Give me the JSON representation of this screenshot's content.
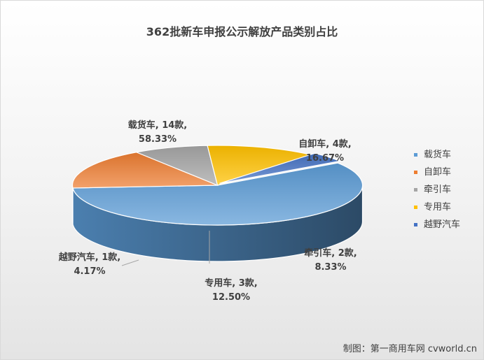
{
  "title": "362批新车申报公示解放产品类别占比",
  "credit": "制图：第一商用车网 cvworld.cn",
  "chart_data": {
    "type": "pie",
    "title": "362批新车申报公示解放产品类别占比",
    "legend_position": "right",
    "categories": [
      "载货车",
      "自卸车",
      "牵引车",
      "专用车",
      "越野汽车"
    ],
    "values": [
      14,
      4,
      2,
      3,
      1
    ],
    "percent_labels": [
      "58.33%",
      "16.67%",
      "8.33%",
      "12.50%",
      "4.17%"
    ],
    "count_labels": [
      "载货车, 14款,",
      "自卸车, 4款,",
      "牵引车, 2款,",
      "专用车, 3款,",
      "越野汽车, 1款,"
    ],
    "colors": [
      "#5b9bd5",
      "#ed7d31",
      "#a5a5a5",
      "#ffc000",
      "#4472c4"
    ]
  }
}
